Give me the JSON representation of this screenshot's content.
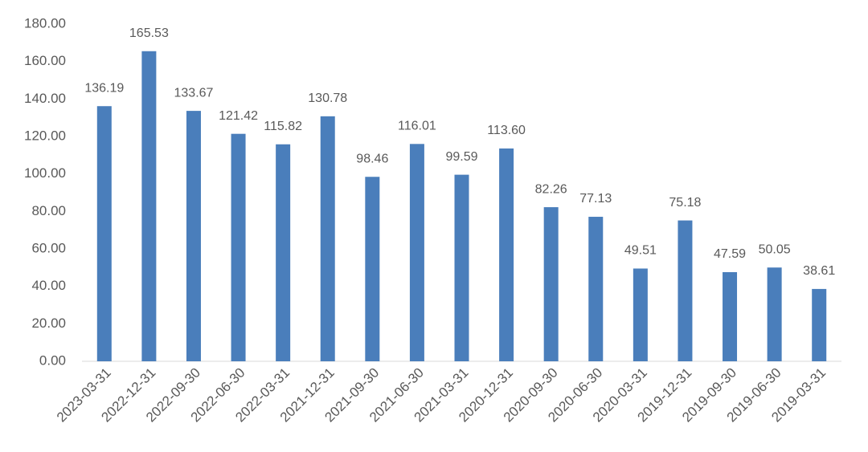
{
  "chart_data": {
    "type": "bar",
    "categories": [
      "2023-03-31",
      "2022-12-31",
      "2022-09-30",
      "2022-06-30",
      "2022-03-31",
      "2021-12-31",
      "2021-09-30",
      "2021-06-30",
      "2021-03-31",
      "2020-12-31",
      "2020-09-30",
      "2020-06-30",
      "2020-03-31",
      "2019-12-31",
      "2019-09-30",
      "2019-06-30",
      "2019-03-31"
    ],
    "values": [
      136.19,
      165.53,
      133.67,
      121.42,
      115.82,
      130.78,
      98.46,
      116.01,
      99.59,
      113.6,
      82.26,
      77.13,
      49.51,
      75.18,
      47.59,
      50.05,
      38.61
    ],
    "value_labels": [
      "136.19",
      "165.53",
      "133.67",
      "121.42",
      "115.82",
      "130.78",
      "98.46",
      "116.01",
      "99.59",
      "113.60",
      "82.26",
      "77.13",
      "49.51",
      "75.18",
      "47.59",
      "50.05",
      "38.61"
    ],
    "color": "#4a7ebb",
    "ylim": [
      0,
      180
    ],
    "yticks": [
      {
        "value": 0,
        "label": "0.00"
      },
      {
        "value": 20,
        "label": "20.00"
      },
      {
        "value": 40,
        "label": "40.00"
      },
      {
        "value": 60,
        "label": "60.00"
      },
      {
        "value": 80,
        "label": "80.00"
      },
      {
        "value": 100,
        "label": "100.00"
      },
      {
        "value": 120,
        "label": "120.00"
      },
      {
        "value": 140,
        "label": "140.00"
      },
      {
        "value": 160,
        "label": "160.00"
      },
      {
        "value": 180,
        "label": "180.00"
      }
    ],
    "grid": false
  }
}
